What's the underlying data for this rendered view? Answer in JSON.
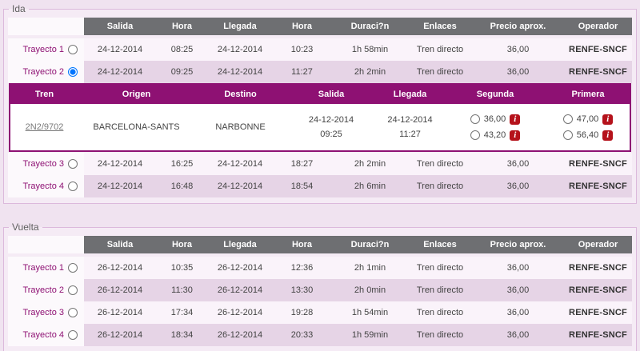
{
  "ida": {
    "title": "Ida",
    "columns": [
      "Salida",
      "Hora",
      "Llegada",
      "Hora",
      "Duraci?n",
      "Enlaces",
      "Precio aprox.",
      "Operador"
    ],
    "rows": [
      {
        "label": "Trayecto 1",
        "selected": false,
        "salida": "24-12-2014",
        "hora_salida": "08:25",
        "llegada": "24-12-2014",
        "hora_llegada": "10:23",
        "duracion": "1h 58min",
        "enlaces": "Tren directo",
        "precio": "36,00",
        "operador": "RENFE-SNCF"
      },
      {
        "label": "Trayecto 2",
        "selected": true,
        "salida": "24-12-2014",
        "hora_salida": "09:25",
        "llegada": "24-12-2014",
        "hora_llegada": "11:27",
        "duracion": "2h 2min",
        "enlaces": "Tren directo",
        "precio": "36,00",
        "operador": "RENFE-SNCF"
      },
      {
        "label": "Trayecto 3",
        "selected": false,
        "salida": "24-12-2014",
        "hora_salida": "16:25",
        "llegada": "24-12-2014",
        "hora_llegada": "18:27",
        "duracion": "2h 2min",
        "enlaces": "Tren directo",
        "precio": "36,00",
        "operador": "RENFE-SNCF"
      },
      {
        "label": "Trayecto 4",
        "selected": false,
        "salida": "24-12-2014",
        "hora_salida": "16:48",
        "llegada": "24-12-2014",
        "hora_llegada": "18:54",
        "duracion": "2h 6min",
        "enlaces": "Tren directo",
        "precio": "36,00",
        "operador": "RENFE-SNCF"
      }
    ],
    "detail": {
      "columns": [
        "Tren",
        "Origen",
        "Destino",
        "Salida",
        "Llegada",
        "Segunda",
        "Primera"
      ],
      "tren": "2N2/9702",
      "origen": "BARCELONA-SANTS",
      "destino": "NARBONNE",
      "salida_fecha": "24-12-2014",
      "salida_hora": "09:25",
      "llegada_fecha": "24-12-2014",
      "llegada_hora": "11:27",
      "info_label": "i",
      "segunda": [
        {
          "precio": "36,00",
          "selected": false
        },
        {
          "precio": "43,20",
          "selected": false
        }
      ],
      "primera": [
        {
          "precio": "47,00",
          "selected": false
        },
        {
          "precio": "56,40",
          "selected": false
        }
      ]
    }
  },
  "vuelta": {
    "title": "Vuelta",
    "columns": [
      "Salida",
      "Hora",
      "Llegada",
      "Hora",
      "Duraci?n",
      "Enlaces",
      "Precio aprox.",
      "Operador"
    ],
    "rows": [
      {
        "label": "Trayecto 1",
        "selected": false,
        "salida": "26-12-2014",
        "hora_salida": "10:35",
        "llegada": "26-12-2014",
        "hora_llegada": "12:36",
        "duracion": "2h 1min",
        "enlaces": "Tren directo",
        "precio": "36,00",
        "operador": "RENFE-SNCF"
      },
      {
        "label": "Trayecto 2",
        "selected": false,
        "salida": "26-12-2014",
        "hora_salida": "11:30",
        "llegada": "26-12-2014",
        "hora_llegada": "13:30",
        "duracion": "2h 0min",
        "enlaces": "Tren directo",
        "precio": "36,00",
        "operador": "RENFE-SNCF"
      },
      {
        "label": "Trayecto 3",
        "selected": false,
        "salida": "26-12-2014",
        "hora_salida": "17:34",
        "llegada": "26-12-2014",
        "hora_llegada": "19:28",
        "duracion": "1h 54min",
        "enlaces": "Tren directo",
        "precio": "36,00",
        "operador": "RENFE-SNCF"
      },
      {
        "label": "Trayecto 4",
        "selected": false,
        "salida": "26-12-2014",
        "hora_salida": "18:34",
        "llegada": "26-12-2014",
        "hora_llegada": "20:33",
        "duracion": "1h 59min",
        "enlaces": "Tren directo",
        "precio": "36,00",
        "operador": "RENFE-SNCF"
      }
    ]
  },
  "colors": {
    "accent_magenta": "#8e1173",
    "header_gray": "#6e6f72",
    "info_red": "#b5121b"
  }
}
